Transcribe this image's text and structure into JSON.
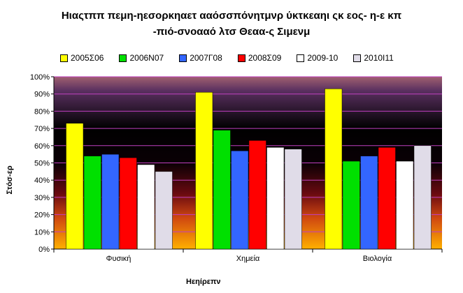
{
  "chart_data": {
    "type": "bar",
    "title_lines": [
      "Ηιαςτππ πεμη-ηεσορκηαετ ααόσσπόνητμνρ ύκτκεαηι ςκ εος- η-ε κπ",
      "-πιό-σνοααό λτσ Θεαα-ς Σιμενμ"
    ],
    "xlabel": "Ηεηίρεπν",
    "ylabel": "Στόσ-ερ",
    "categories": [
      "Φυσική",
      "Χημεία",
      "Βιολογία"
    ],
    "ylim": [
      0,
      100
    ],
    "y_ticks": [
      "0%",
      "10%",
      "20%",
      "30%",
      "40%",
      "50%",
      "60%",
      "70%",
      "80%",
      "90%",
      "100%"
    ],
    "grid": true,
    "legend_position": "top",
    "series": [
      {
        "name": "2005Σ06",
        "color": "#ffff00",
        "values": [
          73,
          91,
          93
        ]
      },
      {
        "name": "2006Ν07",
        "color": "#00e000",
        "values": [
          54,
          69,
          51
        ]
      },
      {
        "name": "2007Γ08",
        "color": "#3366ff",
        "values": [
          55,
          57,
          54
        ]
      },
      {
        "name": "2008Σ09",
        "color": "#ff0000",
        "values": [
          53,
          63,
          59
        ]
      },
      {
        "name": "2009-10",
        "color": "#ffffff",
        "values": [
          49,
          59,
          51
        ]
      },
      {
        "name": "2010Ι11",
        "color": "#e0dce8",
        "values": [
          45,
          58,
          60
        ]
      }
    ]
  }
}
